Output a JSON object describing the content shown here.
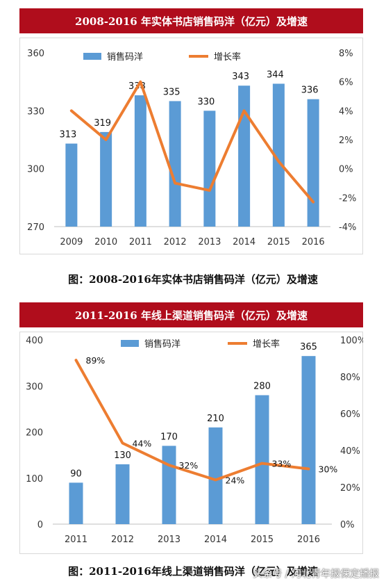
{
  "chart_data": [
    {
      "type": "bar",
      "title": "2008-2016 年实体书店销售码洋（亿元）及增速",
      "caption": "图：2008-2016年实体书店销售码洋（亿元）及增速",
      "categories": [
        "2009",
        "2010",
        "2011",
        "2012",
        "2013",
        "2014",
        "2015",
        "2016"
      ],
      "series": [
        {
          "name": "销售码洋",
          "type": "bar",
          "axis": "left",
          "values": [
            313,
            319,
            338,
            335,
            330,
            343,
            344,
            336
          ],
          "value_labels": [
            "313",
            "319",
            "338",
            "335",
            "330",
            "343",
            "344",
            "336"
          ],
          "color": "#5b9bd5"
        },
        {
          "name": "增长率",
          "type": "line",
          "axis": "right",
          "values": [
            4.0,
            2.0,
            6.0,
            -1.0,
            -1.5,
            4.0,
            0.5,
            -2.3
          ],
          "color": "#ed7d31"
        }
      ],
      "ylim": [
        270,
        360
      ],
      "yticks": [
        "360",
        "330",
        "300",
        "270"
      ],
      "y2lim": [
        -4,
        8
      ],
      "y2ticks": [
        "8%",
        "6%",
        "4%",
        "2%",
        "0%",
        "-2%",
        "-4%"
      ],
      "legend": "top",
      "grid": false
    },
    {
      "type": "bar",
      "title": "2011-2016 年线上渠道销售码洋（亿元）及增速",
      "caption": "图：2011-2016年线上渠道销售码洋（亿元）及增速",
      "categories": [
        "2011",
        "2012",
        "2013",
        "2014",
        "2015",
        "2016"
      ],
      "series": [
        {
          "name": "销售码洋",
          "type": "bar",
          "axis": "left",
          "values": [
            90,
            130,
            170,
            210,
            280,
            365
          ],
          "value_labels": [
            "90",
            "130",
            "170",
            "210",
            "280",
            "365"
          ],
          "color": "#5b9bd5"
        },
        {
          "name": "增长率",
          "type": "line",
          "axis": "right",
          "values": [
            89,
            44,
            32,
            24,
            33,
            30
          ],
          "value_labels": [
            "89%",
            "44%",
            "32%",
            "24%",
            "33%",
            "30%"
          ],
          "color": "#ed7d31"
        }
      ],
      "ylim": [
        0,
        400
      ],
      "yticks": [
        "400",
        "300",
        "200",
        "100",
        "0"
      ],
      "y2lim": [
        0,
        100
      ],
      "y2ticks": [
        "100%",
        "80%",
        "60%",
        "40%",
        "20%",
        "0%"
      ],
      "legend": "top",
      "grid": false
    }
  ],
  "watermark": "头条号 / 河北青年报保定播报"
}
